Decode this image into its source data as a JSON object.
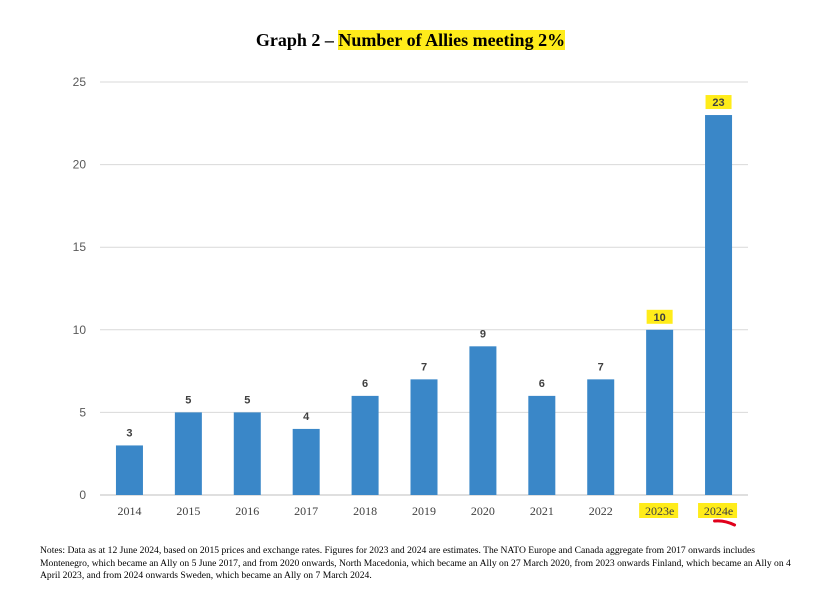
{
  "title": {
    "prefix": "Graph 2 – ",
    "highlighted": "Number of Allies meeting 2%"
  },
  "notes": "Notes: Data as at 12 June 2024, based on 2015 prices and exchange rates. Figures for 2023 and 2024 are estimates. The NATO Europe and Canada aggregate from 2017 onwards includes Montenegro, which became an Ally on 5 June 2017, and from 2020 onwards, North Macedonia, which became an Ally on 27 March 2020, from 2023 onwards Finland, which became an Ally on 4 April 2023, and from 2024 onwards Sweden, which became an Ally on 7 March 2024.",
  "colors": {
    "bar": "#3a87c8",
    "highlight": "#ffec1a",
    "annotation": "#e0001b",
    "grid": "#d9d9d9"
  },
  "chart_data": {
    "type": "bar",
    "categories": [
      "2014",
      "2015",
      "2016",
      "2017",
      "2018",
      "2019",
      "2020",
      "2021",
      "2022",
      "2023e",
      "2024e"
    ],
    "values": [
      3,
      5,
      5,
      4,
      6,
      7,
      9,
      6,
      7,
      10,
      23
    ],
    "highlighted_categories": [
      "2023e",
      "2024e"
    ],
    "highlighted_value_labels": [
      "10",
      "23"
    ],
    "title": "Graph 2 – Number of Allies meeting 2%",
    "xlabel": "",
    "ylabel": "",
    "ylim": [
      0,
      25
    ],
    "yticks": [
      0,
      5,
      10,
      15,
      20,
      25
    ],
    "grid": true,
    "legend": "none"
  }
}
